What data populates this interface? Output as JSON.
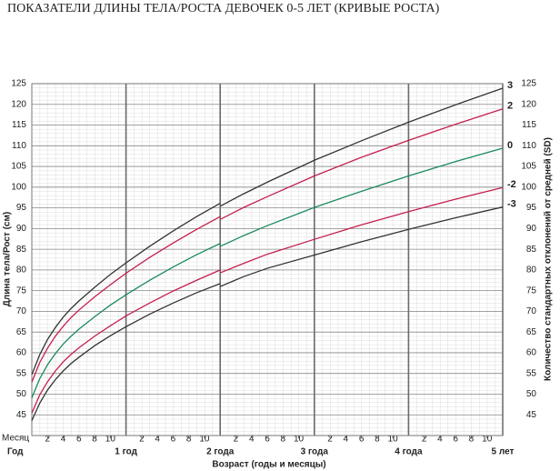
{
  "chart_data": {
    "type": "line",
    "title": "ПОКАЗАТЕЛИ ДЛИНЫ ТЕЛА/РОСТА ДЕВОЧЕК 0-5 ЛЕТ (КРИВЫЕ РОСТА)",
    "y_label": "Длина тела/Рост (см)",
    "y2_label": "Количество стандартных отклонений от средней (SD)",
    "x_label": "Возраст (годы и месяцы)",
    "month_row_label": "Месяц",
    "year_row_label": "Год",
    "x": [
      0,
      1,
      2,
      3,
      4,
      5,
      6,
      8,
      10,
      12,
      15,
      18,
      21,
      24,
      24,
      24,
      27,
      30,
      36,
      42,
      48,
      54,
      60
    ],
    "series": [
      {
        "name": "3",
        "color": "#333333",
        "values": [
          54.7,
          59.5,
          63.2,
          66.1,
          68.6,
          70.7,
          72.5,
          75.8,
          78.9,
          81.7,
          85.7,
          89.4,
          92.9,
          96.1,
          null,
          95.4,
          98.4,
          101.2,
          106.5,
          111.2,
          115.7,
          119.9,
          123.9
        ]
      },
      {
        "name": "2",
        "color": "#c41f4b",
        "values": [
          52.9,
          57.6,
          61.1,
          64.0,
          66.4,
          68.5,
          70.3,
          73.5,
          76.4,
          79.2,
          83.0,
          86.5,
          89.8,
          92.9,
          null,
          92.2,
          95.1,
          97.7,
          102.7,
          107.2,
          111.3,
          115.2,
          118.9
        ]
      },
      {
        "name": "0",
        "color": "#1a8a5c",
        "values": [
          49.1,
          53.7,
          57.1,
          59.8,
          62.1,
          64.0,
          65.7,
          68.7,
          71.5,
          74.0,
          77.5,
          80.7,
          83.7,
          86.4,
          null,
          85.7,
          88.3,
          90.7,
          95.1,
          99.0,
          102.7,
          106.2,
          109.4
        ]
      },
      {
        "name": "-2",
        "color": "#c41f4b",
        "values": [
          45.4,
          49.8,
          53.0,
          55.6,
          57.8,
          59.6,
          61.2,
          64.0,
          66.5,
          68.9,
          72.0,
          74.9,
          77.5,
          80.0,
          null,
          79.3,
          81.6,
          83.8,
          87.4,
          90.9,
          94.1,
          97.1,
          99.9
        ]
      },
      {
        "name": "-3",
        "color": "#333333",
        "values": [
          43.6,
          47.8,
          51.0,
          53.5,
          55.6,
          57.4,
          58.9,
          61.7,
          64.1,
          66.3,
          69.3,
          72.0,
          74.5,
          76.7,
          null,
          76.0,
          78.4,
          80.4,
          83.6,
          86.8,
          89.8,
          92.6,
          95.2
        ]
      }
    ],
    "xlim": [
      0,
      60
    ],
    "xticks": [
      2,
      4,
      6,
      8,
      10,
      {
        "value": 14,
        "label": "2"
      },
      {
        "value": 16,
        "label": "4"
      },
      {
        "value": 18,
        "label": "6"
      },
      {
        "value": 20,
        "label": "8"
      },
      {
        "value": 22,
        "label": "10"
      },
      {
        "value": 26,
        "label": "2"
      },
      {
        "value": 28,
        "label": "4"
      },
      {
        "value": 30,
        "label": "6"
      },
      {
        "value": 32,
        "label": "8"
      },
      {
        "value": 34,
        "label": "10"
      },
      {
        "value": 38,
        "label": "2"
      },
      {
        "value": 40,
        "label": "4"
      },
      {
        "value": 42,
        "label": "6"
      },
      {
        "value": 44,
        "label": "8"
      },
      {
        "value": 46,
        "label": "10"
      },
      {
        "value": 50,
        "label": "2"
      },
      {
        "value": 52,
        "label": "4"
      },
      {
        "value": 54,
        "label": "6"
      },
      {
        "value": 56,
        "label": "8"
      },
      {
        "value": 58,
        "label": "10"
      }
    ],
    "year_ticks": [
      {
        "value": 12,
        "label": "1 год"
      },
      {
        "value": 24,
        "label": "2 года"
      },
      {
        "value": 36,
        "label": "3 года"
      },
      {
        "value": 48,
        "label": "4 года"
      },
      {
        "value": 60,
        "label": "5 лет"
      }
    ],
    "ylim": [
      40,
      125
    ],
    "yticks": [
      45,
      50,
      55,
      60,
      65,
      70,
      75,
      80,
      85,
      90,
      95,
      100,
      105,
      110,
      115,
      120,
      125
    ],
    "grid": true
  }
}
